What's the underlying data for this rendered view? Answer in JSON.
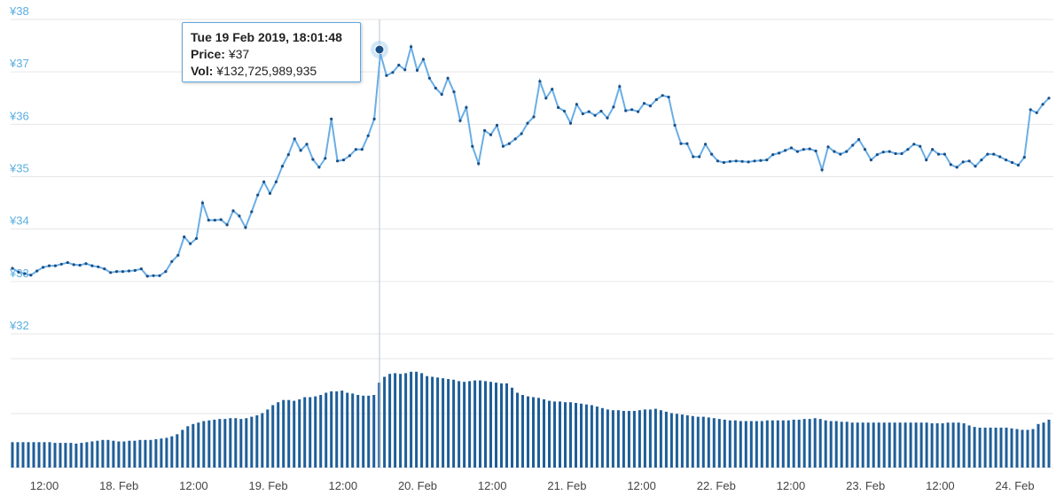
{
  "colors": {
    "line": "#6aaee6",
    "point": "#1a4f86",
    "bar": "#1f5e99",
    "grid": "#e6e6e6",
    "y_label": "#5aaee0",
    "crosshair": "#b8c6d4",
    "tooltip_border": "#5da7e0"
  },
  "tooltip": {
    "date": "Tue 19 Feb 2019, 18:01:48",
    "price_label": "Price:",
    "price_value": "¥37",
    "vol_label": "Vol:",
    "vol_value": "¥132,725,989,935"
  },
  "chart_data": [
    {
      "type": "line",
      "series_role": "price",
      "y_ticks": [
        "¥38",
        "¥37",
        "¥36",
        "¥35",
        "¥34",
        "¥33",
        "¥32"
      ],
      "ylim": [
        32,
        38
      ],
      "x_ticks": [
        "12:00",
        "18. Feb",
        "12:00",
        "19. Feb",
        "12:00",
        "20. Feb",
        "12:00",
        "21. Feb",
        "12:00",
        "22. Feb",
        "12:00",
        "23. Feb",
        "12:00",
        "24. Feb"
      ],
      "values": [
        33.25,
        33.18,
        33.15,
        33.12,
        33.2,
        33.27,
        33.3,
        33.3,
        33.33,
        33.36,
        33.32,
        33.31,
        33.34,
        33.3,
        33.28,
        33.24,
        33.17,
        33.19,
        33.19,
        33.2,
        33.21,
        33.24,
        33.1,
        33.11,
        33.11,
        33.19,
        33.38,
        33.5,
        33.85,
        33.72,
        33.82,
        34.5,
        34.17,
        34.17,
        34.18,
        34.08,
        34.35,
        34.25,
        34.03,
        34.33,
        34.65,
        34.9,
        34.68,
        34.9,
        35.2,
        35.42,
        35.72,
        35.5,
        35.62,
        35.33,
        35.18,
        35.35,
        36.1,
        35.3,
        35.32,
        35.4,
        35.52,
        35.52,
        35.78,
        36.1,
        37.35,
        36.93,
        36.99,
        37.13,
        37.04,
        37.48,
        37.03,
        37.24,
        36.88,
        36.69,
        36.57,
        36.88,
        36.62,
        36.07,
        36.32,
        35.58,
        35.25,
        35.88,
        35.8,
        35.98,
        35.58,
        35.63,
        35.72,
        35.82,
        36.02,
        36.14,
        36.82,
        36.5,
        36.67,
        36.32,
        36.25,
        36.02,
        36.38,
        36.2,
        36.24,
        36.17,
        36.25,
        36.12,
        36.33,
        36.72,
        36.26,
        36.28,
        36.24,
        36.4,
        36.35,
        36.47,
        36.55,
        36.52,
        35.98,
        35.63,
        35.63,
        35.38,
        35.38,
        35.62,
        35.43,
        35.3,
        35.27,
        35.29,
        35.3,
        35.29,
        35.28,
        35.3,
        35.31,
        35.32,
        35.42,
        35.45,
        35.5,
        35.55,
        35.48,
        35.52,
        35.53,
        35.49,
        35.13,
        35.57,
        35.48,
        35.43,
        35.48,
        35.6,
        35.71,
        35.52,
        35.32,
        35.42,
        35.47,
        35.48,
        35.44,
        35.44,
        35.52,
        35.62,
        35.58,
        35.32,
        35.52,
        35.43,
        35.43,
        35.23,
        35.18,
        35.28,
        35.3,
        35.2,
        35.32,
        35.43,
        35.43,
        35.38,
        35.32,
        35.27,
        35.22,
        35.37,
        36.28,
        36.22,
        36.38,
        36.5
      ]
    },
    {
      "type": "bar",
      "series_role": "volume",
      "values": [
        0.35,
        0.35,
        0.35,
        0.35,
        0.35,
        0.35,
        0.35,
        0.35,
        0.34,
        0.34,
        0.34,
        0.34,
        0.33,
        0.34,
        0.35,
        0.36,
        0.37,
        0.38,
        0.38,
        0.37,
        0.36,
        0.36,
        0.37,
        0.37,
        0.38,
        0.38,
        0.38,
        0.39,
        0.4,
        0.41,
        0.43,
        0.46,
        0.52,
        0.57,
        0.6,
        0.62,
        0.64,
        0.65,
        0.66,
        0.67,
        0.67,
        0.68,
        0.68,
        0.67,
        0.68,
        0.7,
        0.72,
        0.75,
        0.8,
        0.86,
        0.9,
        0.93,
        0.93,
        0.92,
        0.94,
        0.97,
        0.97,
        0.98,
        1.0,
        1.03,
        1.05,
        1.05,
        1.06,
        1.03,
        1.02,
        1.0,
        0.99,
        0.99,
        1.0,
        1.17,
        1.25,
        1.29,
        1.3,
        1.29,
        1.3,
        1.32,
        1.32,
        1.3,
        1.26,
        1.25,
        1.24,
        1.23,
        1.22,
        1.21,
        1.19,
        1.18,
        1.19,
        1.2,
        1.2,
        1.19,
        1.18,
        1.17,
        1.16,
        1.16,
        1.1,
        1.03,
        1.0,
        0.98,
        0.97,
        0.96,
        0.94,
        0.92,
        0.91,
        0.91,
        0.9,
        0.9,
        0.89,
        0.88,
        0.87,
        0.86,
        0.84,
        0.82,
        0.8,
        0.79,
        0.79,
        0.78,
        0.78,
        0.78,
        0.79,
        0.8,
        0.8,
        0.81,
        0.79,
        0.77,
        0.75,
        0.74,
        0.73,
        0.72,
        0.71,
        0.7,
        0.7,
        0.69,
        0.68,
        0.67,
        0.66,
        0.65,
        0.65,
        0.64,
        0.64,
        0.64,
        0.64,
        0.64,
        0.65,
        0.65,
        0.65,
        0.65,
        0.65,
        0.66,
        0.66,
        0.67,
        0.67,
        0.68,
        0.67,
        0.65,
        0.64,
        0.64,
        0.63,
        0.63,
        0.62,
        0.62,
        0.62,
        0.62,
        0.62,
        0.62,
        0.62,
        0.62,
        0.62,
        0.62,
        0.62,
        0.62,
        0.62,
        0.62,
        0.62,
        0.61,
        0.61,
        0.61,
        0.62,
        0.62,
        0.62,
        0.61,
        0.58,
        0.56,
        0.55,
        0.55,
        0.55,
        0.55,
        0.55,
        0.55,
        0.54,
        0.53,
        0.52,
        0.52,
        0.53,
        0.6,
        0.62,
        0.66
      ]
    }
  ]
}
